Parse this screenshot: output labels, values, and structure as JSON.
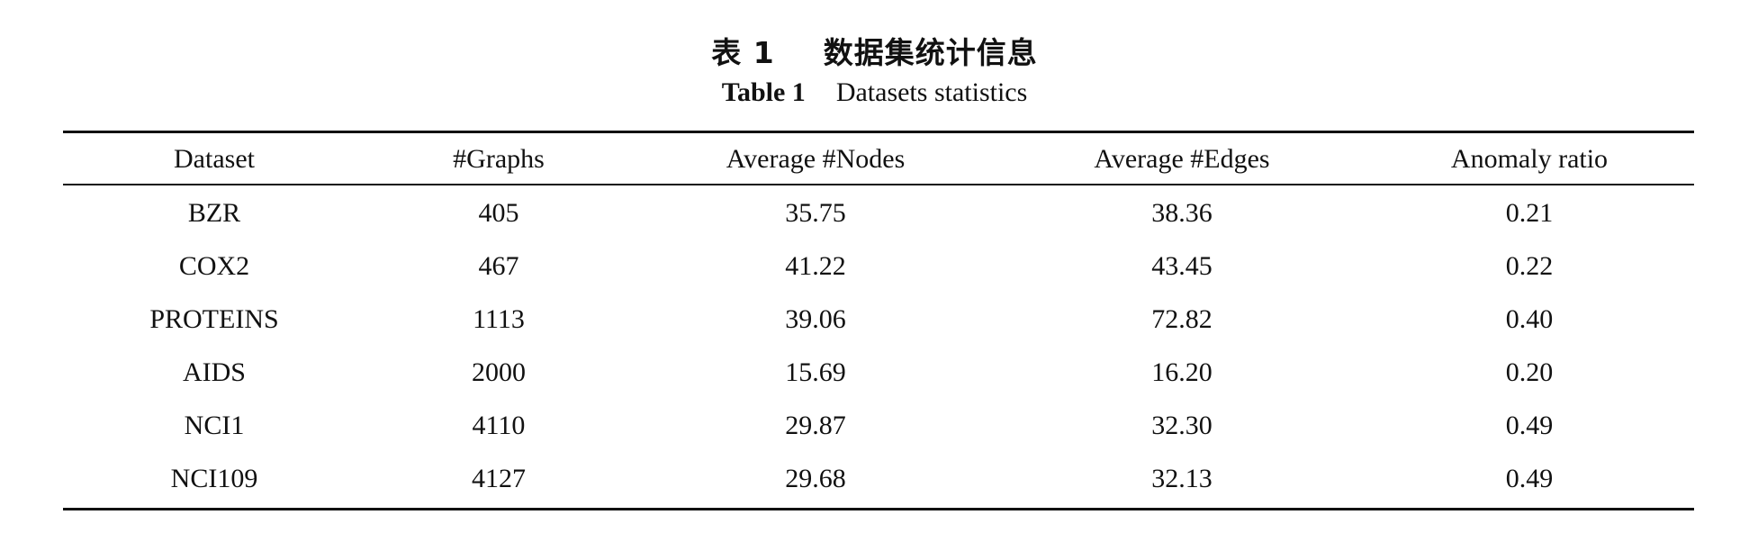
{
  "caption": {
    "cn_label": "表 1",
    "cn_title": "数据集统计信息",
    "en_label": "Table 1",
    "en_title": "Datasets statistics"
  },
  "table": {
    "columns": [
      "Dataset",
      "#Graphs",
      "Average #Nodes",
      "Average #Edges",
      "Anomaly ratio"
    ],
    "rows": [
      [
        "BZR",
        "405",
        "35.75",
        "38.36",
        "0.21"
      ],
      [
        "COX2",
        "467",
        "41.22",
        "43.45",
        "0.22"
      ],
      [
        "PROTEINS",
        "1113",
        "39.06",
        "72.82",
        "0.40"
      ],
      [
        "AIDS",
        "2000",
        "15.69",
        "16.20",
        "0.20"
      ],
      [
        "NCI1",
        "4110",
        "29.87",
        "32.30",
        "0.49"
      ],
      [
        "NCI109",
        "4127",
        "29.68",
        "32.13",
        "0.49"
      ]
    ]
  }
}
